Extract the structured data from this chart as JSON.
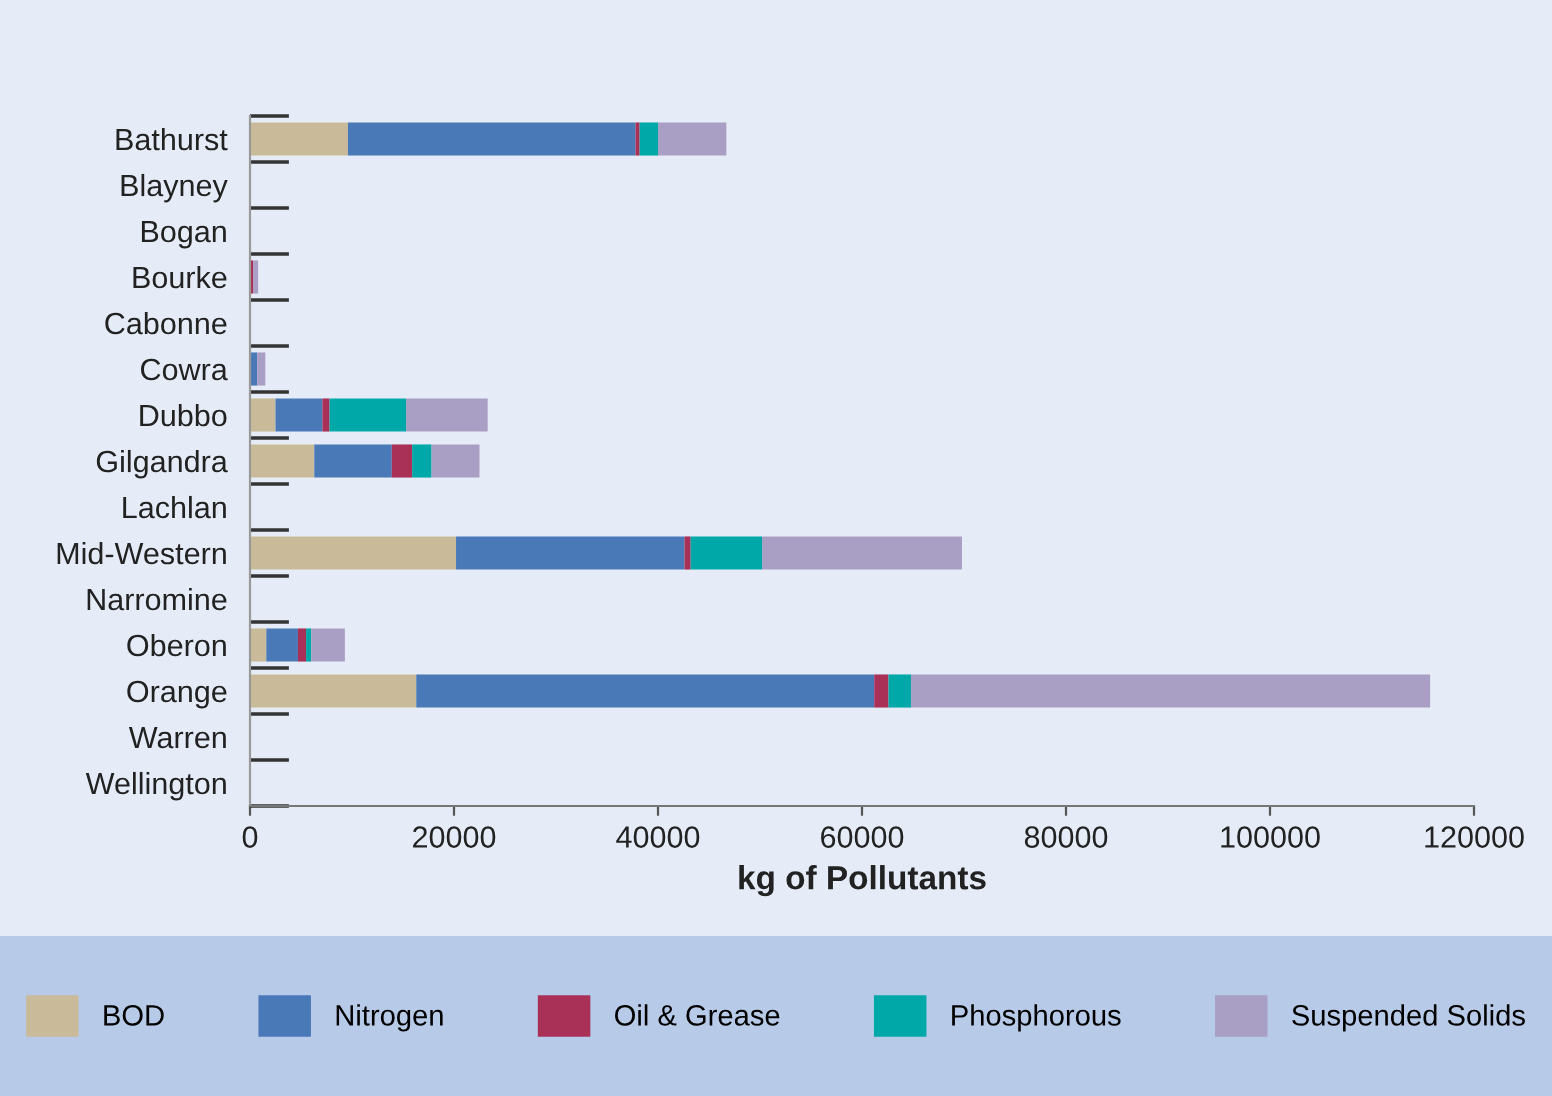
{
  "chart_data": {
    "type": "bar",
    "orientation": "horizontal",
    "stacked": true,
    "xlabel": "kg of Pollutants",
    "categories": [
      "Bathurst",
      "Blayney",
      "Bogan",
      "Bourke",
      "Cabonne",
      "Cowra",
      "Dubbo",
      "Gilgandra",
      "Lachlan",
      "Mid-Western",
      "Narromine",
      "Oberon",
      "Orange",
      "Warren",
      "Wellington"
    ],
    "series": [
      {
        "name": "BOD",
        "color": "#c9bb99",
        "values": [
          9600,
          0,
          0,
          0,
          0,
          null,
          2500,
          6300,
          0,
          20200,
          0,
          1600,
          16300,
          0,
          0
        ]
      },
      {
        "name": "Nitrogen",
        "color": "#4a79b7",
        "values": [
          28200,
          0,
          0,
          0,
          0,
          700,
          4600,
          7600,
          0,
          22400,
          0,
          3100,
          44900,
          0,
          0
        ]
      },
      {
        "name": "Oil & Grease",
        "color": "#a93056",
        "values": [
          400,
          0,
          0,
          300,
          0,
          0,
          700,
          2000,
          0,
          600,
          0,
          800,
          1400,
          0,
          0
        ]
      },
      {
        "name": "Phosphorous",
        "color": "#00a8a8",
        "values": [
          1800,
          0,
          0,
          0,
          0,
          0,
          7500,
          1900,
          0,
          7000,
          0,
          500,
          2200,
          0,
          0
        ]
      },
      {
        "name": "Suspended Solids",
        "color": "#a99ec3",
        "values": [
          6700,
          0,
          0,
          500,
          0,
          800,
          8000,
          4700,
          0,
          19600,
          0,
          3300,
          50900,
          0,
          0
        ]
      }
    ],
    "xlim": [
      0,
      120000
    ],
    "xticks": [
      0,
      20000,
      40000,
      60000,
      80000,
      100000,
      120000
    ],
    "grid": false,
    "legend": "bottom"
  }
}
